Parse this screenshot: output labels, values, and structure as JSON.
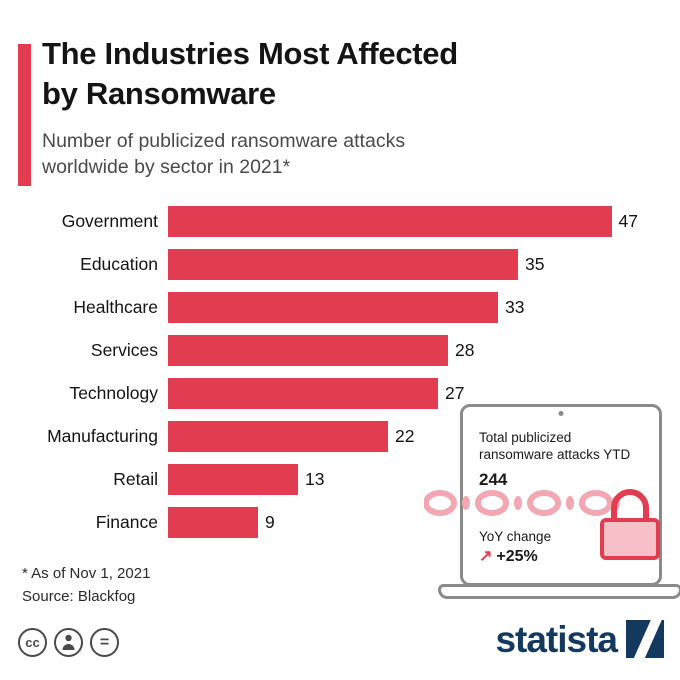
{
  "header": {
    "title_line1": "The Industries Most Affected",
    "title_line2": "by Ransomware",
    "subtitle_line1": "Number of publicized ransomware attacks",
    "subtitle_line2": "worldwide by sector in 2021*"
  },
  "chart_data": {
    "type": "bar",
    "orientation": "horizontal",
    "title": "The Industries Most Affected by Ransomware",
    "subtitle": "Number of publicized ransomware attacks worldwide by sector in 2021*",
    "categories": [
      "Government",
      "Education",
      "Healthcare",
      "Services",
      "Technology",
      "Manufacturing",
      "Retail",
      "Finance"
    ],
    "values": [
      47,
      35,
      33,
      28,
      27,
      22,
      13,
      9
    ],
    "xlim": [
      0,
      47
    ],
    "bar_color": "#e23c50",
    "value_labels_shown": true,
    "grid": false
  },
  "callout": {
    "line1": "Total publicized",
    "line2": "ransomware attacks YTD",
    "total": "244",
    "yoy_label": "YoY change",
    "arrow_glyph": "↗",
    "yoy_value": "+25%"
  },
  "footnote": {
    "line1": "* As of Nov 1, 2021",
    "line2": "Source: Blackfog"
  },
  "license": {
    "cc": "cc",
    "nd": "="
  },
  "brand": {
    "name": "statista"
  },
  "colors": {
    "accent": "#e23c50",
    "brand_navy": "#133a5e",
    "chain_pink": "#f2a7b3",
    "lock_fill": "#f7bfc8",
    "laptop_gray": "#8a8a8a"
  }
}
